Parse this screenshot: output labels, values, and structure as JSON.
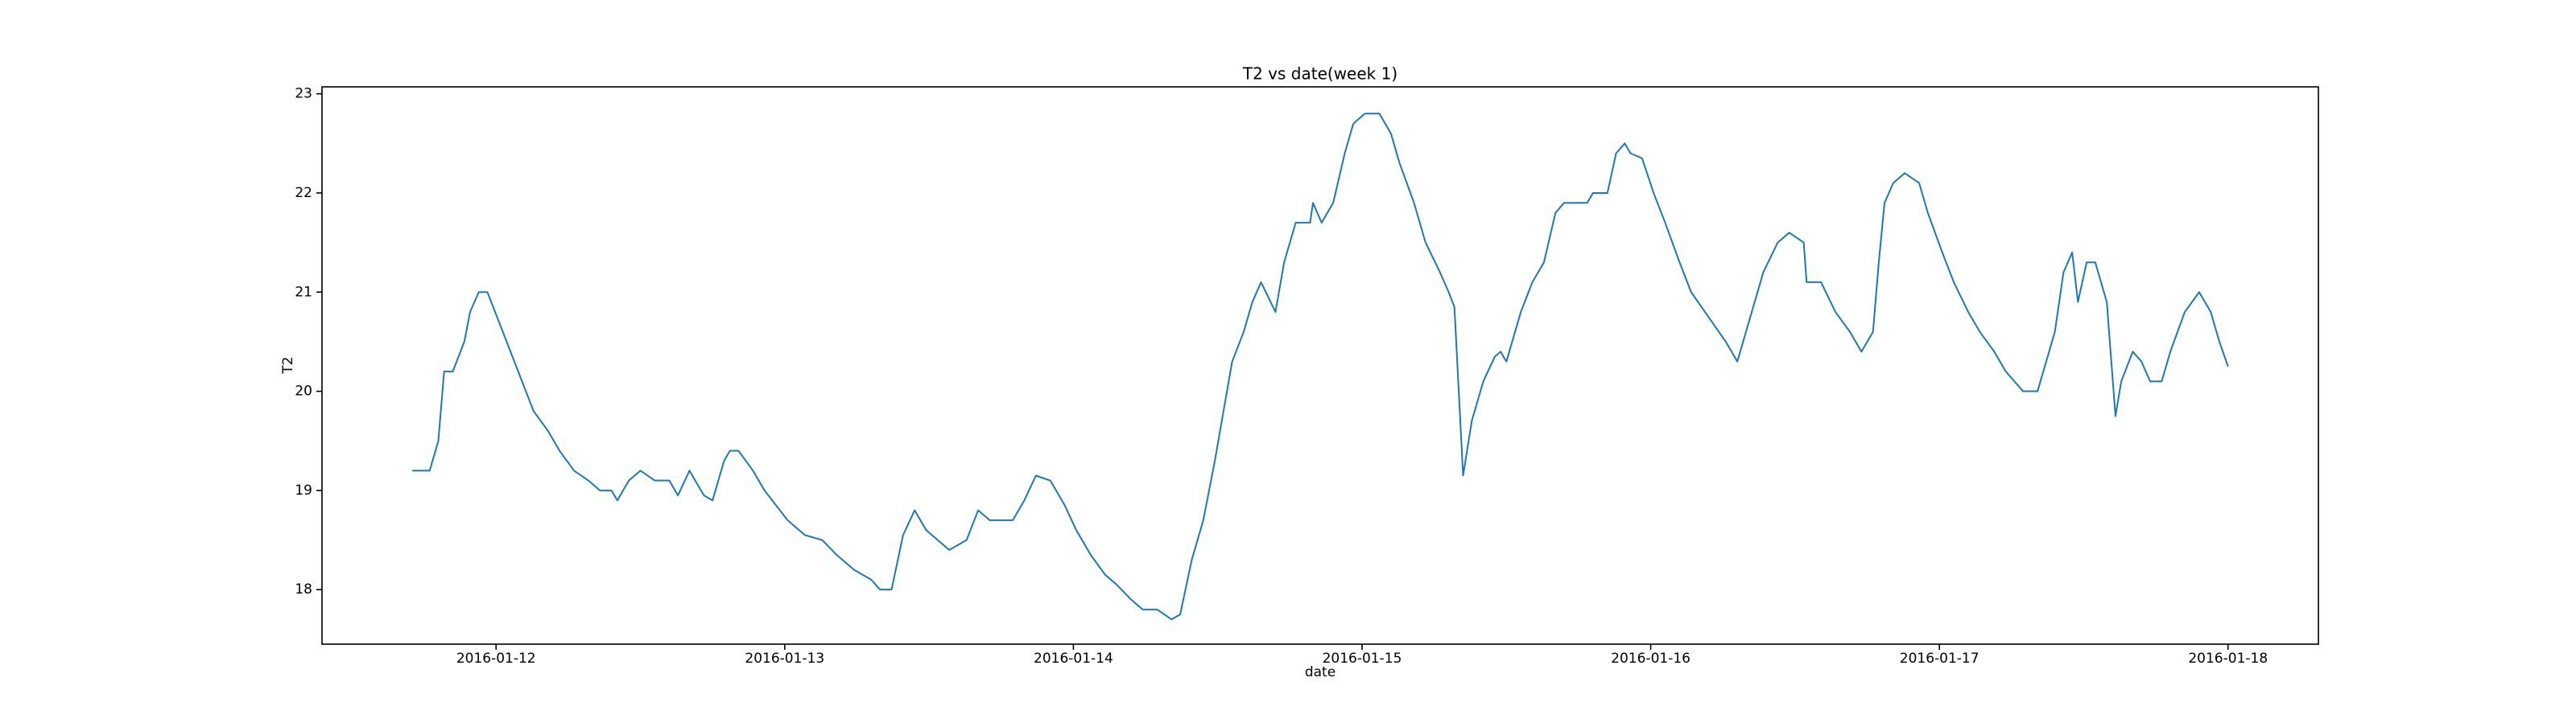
{
  "chart_data": {
    "type": "line",
    "title": "T2 vs date(week 1)",
    "x_label": "date",
    "y_label": "T2",
    "x": [
      16811.71,
      16811.77,
      16811.8,
      16811.82,
      16811.85,
      16811.89,
      16811.91,
      16811.94,
      16811.97,
      16812.01,
      16812.05,
      16812.09,
      16812.13,
      16812.18,
      16812.22,
      16812.27,
      16812.32,
      16812.36,
      16812.4,
      16812.42,
      16812.46,
      16812.5,
      16812.55,
      16812.6,
      16812.63,
      16812.67,
      16812.72,
      16812.75,
      16812.79,
      16812.81,
      16812.84,
      16812.89,
      16812.93,
      16812.97,
      16813.01,
      16813.07,
      16813.13,
      16813.18,
      16813.24,
      16813.3,
      16813.33,
      16813.37,
      16813.41,
      16813.45,
      16813.49,
      16813.53,
      16813.57,
      16813.63,
      16813.67,
      16813.71,
      16813.79,
      16813.83,
      16813.87,
      16813.92,
      16813.97,
      16814.01,
      16814.06,
      16814.11,
      16814.15,
      16814.2,
      16814.24,
      16814.29,
      16814.34,
      16814.37,
      16814.41,
      16814.45,
      16814.49,
      16814.52,
      16814.55,
      16814.59,
      16814.62,
      16814.65,
      16814.7,
      16814.73,
      16814.77,
      16814.82,
      16814.83,
      16814.86,
      16814.9,
      16814.94,
      16814.97,
      16815.01,
      16815.06,
      16815.1,
      16815.13,
      16815.18,
      16815.22,
      16815.27,
      16815.3,
      16815.32,
      16815.35,
      16815.38,
      16815.42,
      16815.46,
      16815.48,
      16815.5,
      16815.55,
      16815.59,
      16815.63,
      16815.67,
      16815.7,
      16815.75,
      16815.78,
      16815.8,
      16815.85,
      16815.88,
      16815.91,
      16815.93,
      16815.97,
      16816.01,
      16816.05,
      16816.1,
      16816.14,
      16816.2,
      16816.26,
      16816.3,
      16816.35,
      16816.39,
      16816.44,
      16816.48,
      16816.53,
      16816.54,
      16816.59,
      16816.64,
      16816.69,
      16816.73,
      16816.77,
      16816.79,
      16816.81,
      16816.84,
      16816.88,
      16816.93,
      16816.96,
      16817.01,
      16817.05,
      16817.1,
      16817.14,
      16817.19,
      16817.23,
      16817.29,
      16817.34,
      16817.4,
      16817.43,
      16817.46,
      16817.48,
      16817.51,
      16817.54,
      16817.58,
      16817.61,
      16817.63,
      16817.67,
      16817.7,
      16817.73,
      16817.77,
      16817.8,
      16817.85,
      16817.9,
      16817.94,
      16817.97,
      16818.0
    ],
    "series": [
      {
        "name": "T2",
        "color": "#1f77b4",
        "values": [
          19.2,
          19.2,
          19.5,
          20.2,
          20.2,
          20.5,
          20.8,
          21.0,
          21.0,
          20.7,
          20.4,
          20.1,
          19.8,
          19.6,
          19.4,
          19.2,
          19.1,
          19.0,
          19.0,
          18.9,
          19.1,
          19.2,
          19.1,
          19.1,
          18.95,
          19.2,
          18.95,
          18.9,
          19.3,
          19.4,
          19.4,
          19.2,
          19.0,
          18.85,
          18.7,
          18.55,
          18.5,
          18.35,
          18.2,
          18.1,
          18.0,
          18.0,
          18.55,
          18.8,
          18.6,
          18.5,
          18.4,
          18.5,
          18.8,
          18.7,
          18.7,
          18.9,
          19.15,
          19.1,
          18.85,
          18.6,
          18.35,
          18.15,
          18.05,
          17.9,
          17.8,
          17.8,
          17.7,
          17.75,
          18.3,
          18.7,
          19.3,
          19.8,
          20.3,
          20.6,
          20.9,
          21.1,
          20.8,
          21.3,
          21.7,
          21.7,
          21.9,
          21.7,
          21.9,
          22.4,
          22.7,
          22.8,
          22.8,
          22.6,
          22.3,
          21.9,
          21.5,
          21.2,
          21.0,
          20.85,
          19.15,
          19.7,
          20.1,
          20.35,
          20.4,
          20.3,
          20.8,
          21.1,
          21.3,
          21.8,
          21.9,
          21.9,
          21.9,
          22.0,
          22.0,
          22.4,
          22.5,
          22.4,
          22.35,
          22.0,
          21.7,
          21.3,
          21.0,
          20.75,
          20.5,
          20.3,
          20.8,
          21.2,
          21.5,
          21.6,
          21.5,
          21.1,
          21.1,
          20.8,
          20.6,
          20.4,
          20.6,
          21.3,
          21.9,
          22.1,
          22.2,
          22.1,
          21.8,
          21.4,
          21.1,
          20.8,
          20.6,
          20.4,
          20.2,
          20.0,
          20.0,
          20.6,
          21.2,
          21.4,
          20.9,
          21.3,
          21.3,
          20.9,
          19.75,
          20.1,
          20.4,
          20.3,
          20.1,
          20.1,
          20.4,
          20.8,
          21.0,
          20.8,
          20.5,
          20.25
        ]
      }
    ],
    "xlim": [
      16811.397,
      16818.313
    ],
    "xticks": [
      {
        "value": 16812,
        "label": "2016-01-12"
      },
      {
        "value": 16813,
        "label": "2016-01-13"
      },
      {
        "value": 16814,
        "label": "2016-01-14"
      },
      {
        "value": 16815,
        "label": "2016-01-15"
      },
      {
        "value": 16816,
        "label": "2016-01-16"
      },
      {
        "value": 16817,
        "label": "2016-01-17"
      },
      {
        "value": 16818,
        "label": "2016-01-18"
      }
    ],
    "ylim": [
      17.45,
      23.07
    ],
    "yticks": [
      18,
      19,
      20,
      21,
      22,
      23
    ]
  }
}
